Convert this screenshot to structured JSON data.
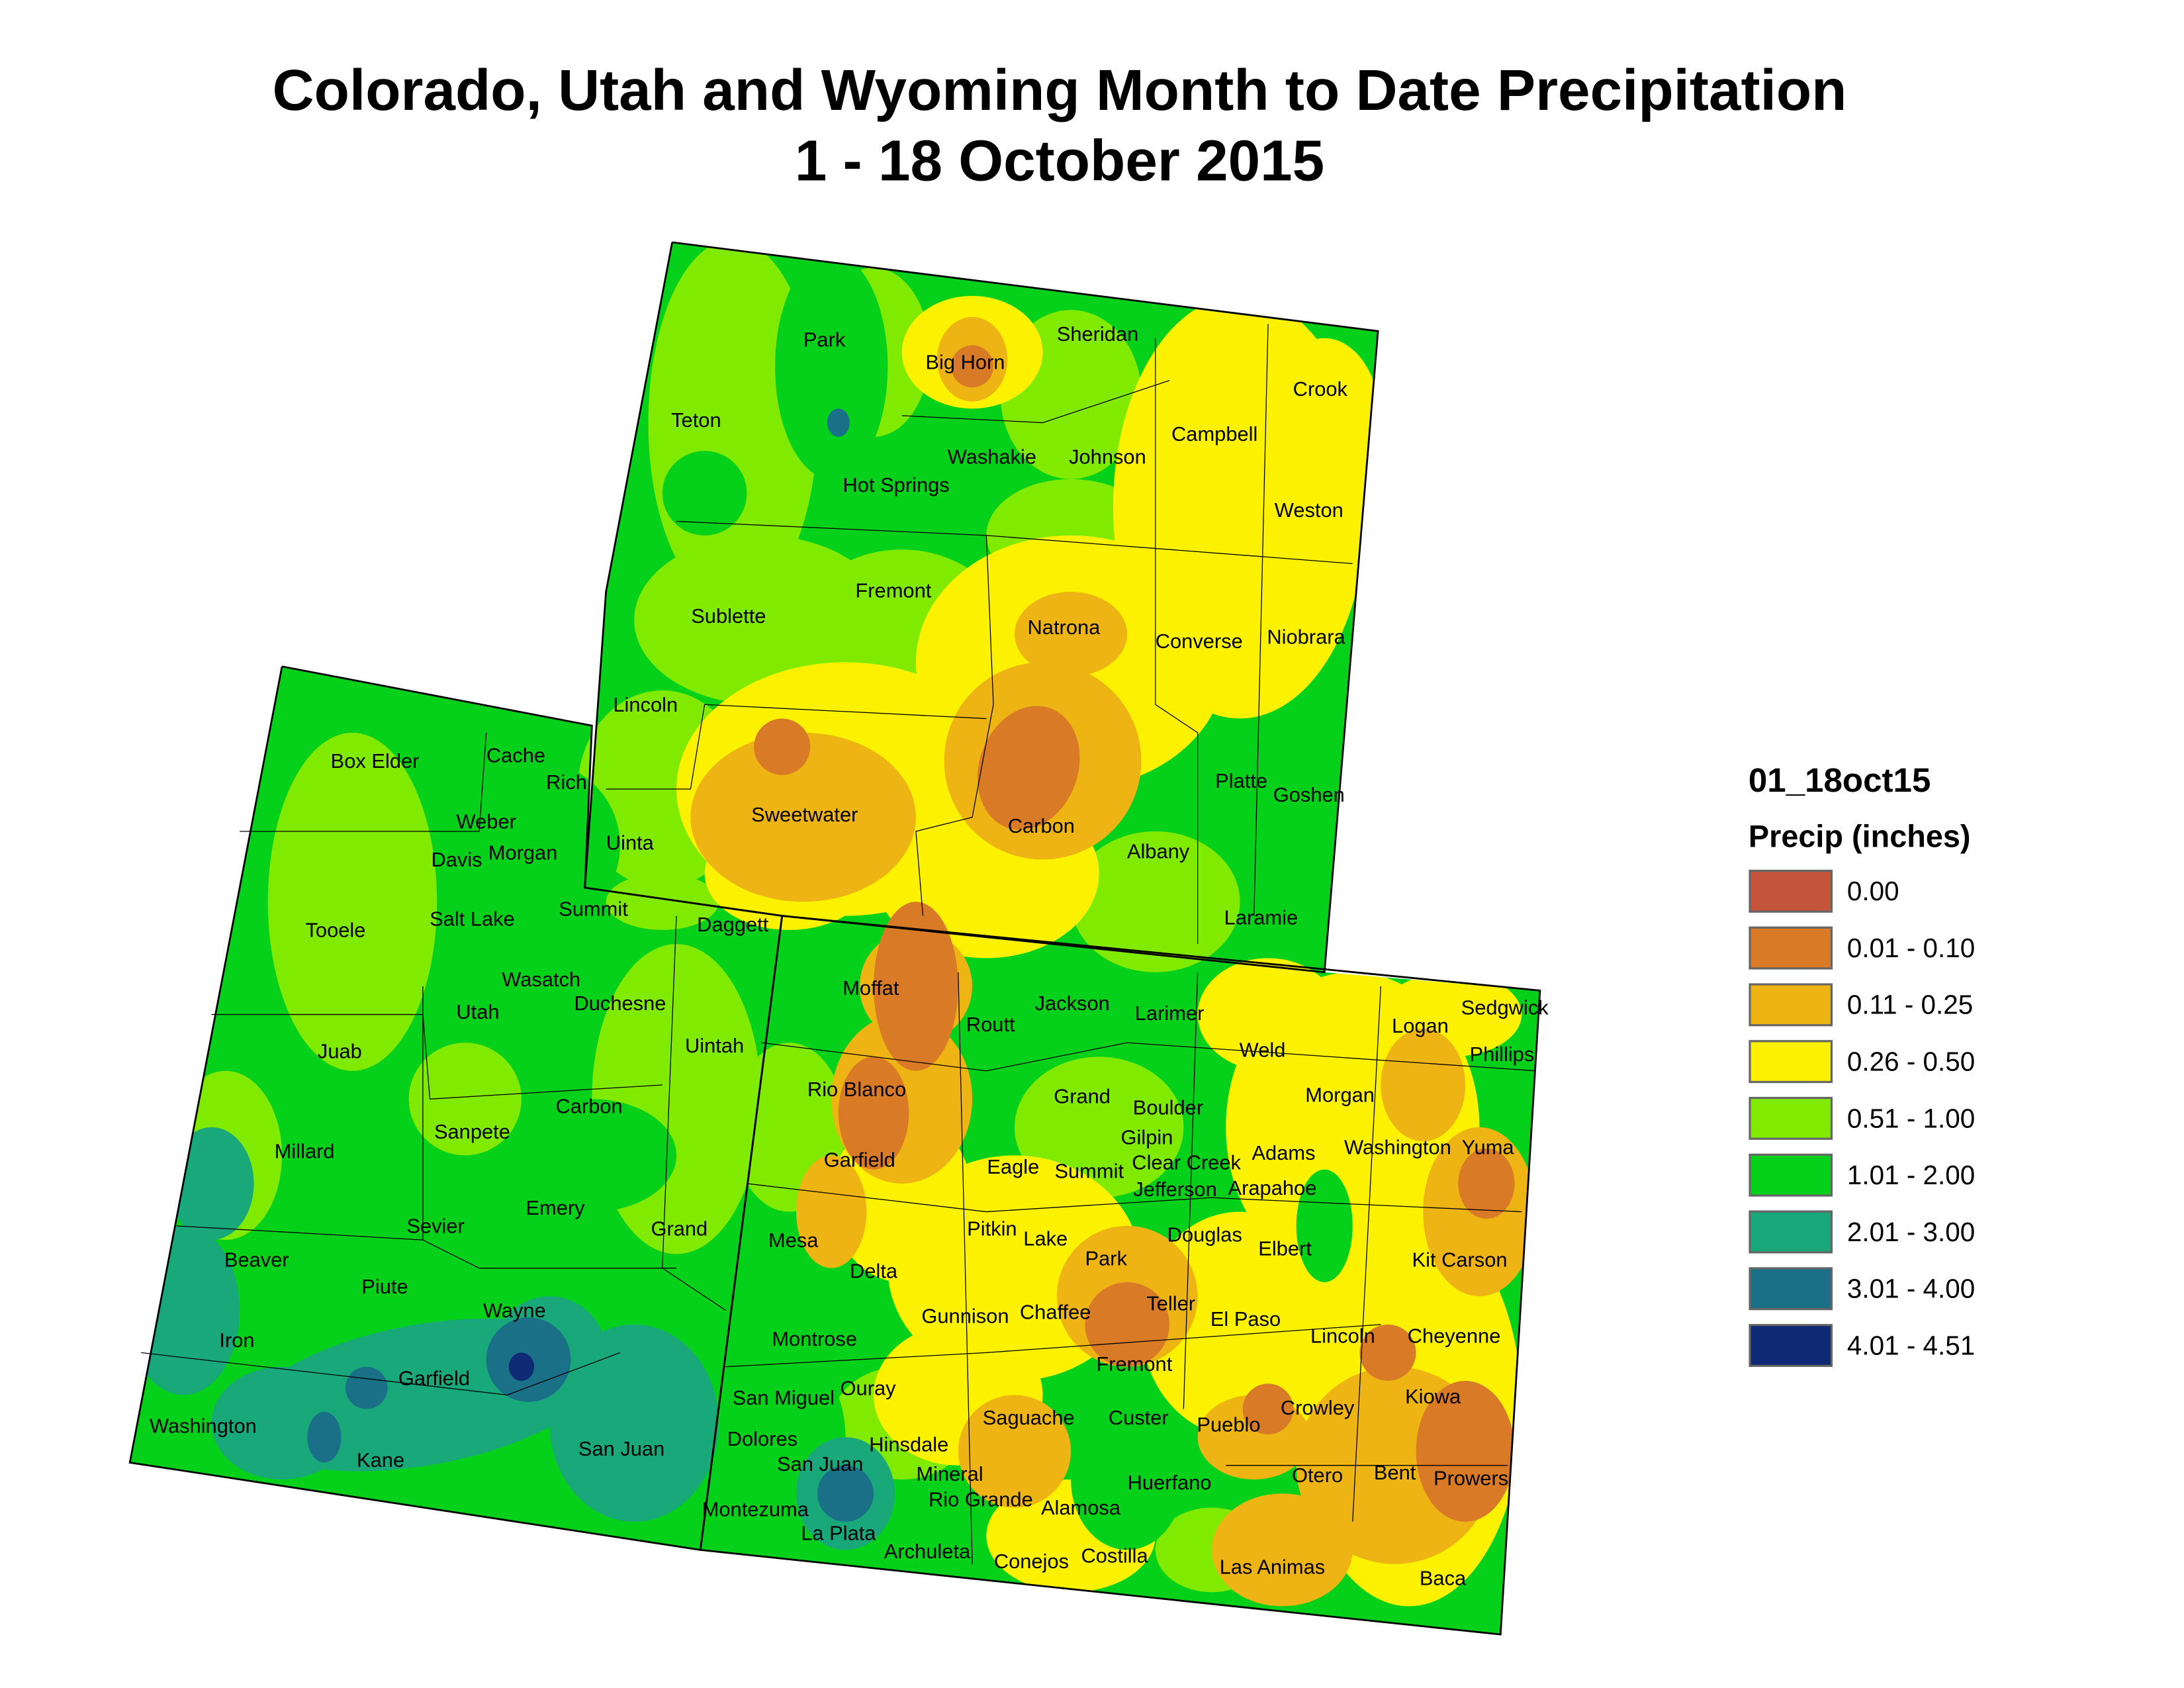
{
  "title": {
    "line1": "Colorado, Utah and Wyoming Month to Date Precipitation",
    "line2": "1 - 18 October 2015"
  },
  "legend": {
    "title": "01_18oct15",
    "subtitle": "Precip (inches)",
    "classes": [
      {
        "label": "0.00",
        "color": "#C4553B"
      },
      {
        "label": "0.01 - 0.10",
        "color": "#D97A26"
      },
      {
        "label": "0.11 - 0.25",
        "color": "#EDB413"
      },
      {
        "label": "0.26 - 0.50",
        "color": "#FCF200"
      },
      {
        "label": "0.51 - 1.00",
        "color": "#80EA00"
      },
      {
        "label": "1.01 - 2.00",
        "color": "#06D11A"
      },
      {
        "label": "2.01 - 3.00",
        "color": "#19A87A"
      },
      {
        "label": "3.01 - 4.00",
        "color": "#1A7087"
      },
      {
        "label": "4.01 - 4.51",
        "color": "#0E2A75"
      }
    ]
  },
  "states": [
    "Wyoming",
    "Utah",
    "Colorado"
  ],
  "counties": {
    "wyoming": [
      "Park",
      "Big Horn",
      "Sheridan",
      "Crook",
      "Teton",
      "Washakie",
      "Johnson",
      "Campbell",
      "Hot Springs",
      "Weston",
      "Fremont",
      "Sublette",
      "Natrona",
      "Converse",
      "Niobrara",
      "Lincoln",
      "Sweetwater",
      "Carbon",
      "Platte",
      "Goshen",
      "Uinta",
      "Albany",
      "Laramie"
    ],
    "utah": [
      "Box Elder",
      "Cache",
      "Rich",
      "Weber",
      "Davis",
      "Morgan",
      "Tooele",
      "Salt Lake",
      "Summit",
      "Daggett",
      "Wasatch",
      "Duchesne",
      "Utah",
      "Uintah",
      "Juab",
      "Sanpete",
      "Carbon",
      "Millard",
      "Emery",
      "Sevier",
      "Grand",
      "Beaver",
      "Piute",
      "Wayne",
      "Iron",
      "Garfield",
      "Washington",
      "Kane",
      "San Juan"
    ],
    "colorado": [
      "Moffat",
      "Routt",
      "Jackson",
      "Larimer",
      "Logan",
      "Sedgwick",
      "Phillips",
      "Weld",
      "Rio Blanco",
      "Grand",
      "Boulder",
      "Morgan",
      "Gilpin",
      "Garfield",
      "Eagle",
      "Summit",
      "Clear Creek",
      "Adams",
      "Washington",
      "Yuma",
      "Jefferson",
      "Arapahoe",
      "Mesa",
      "Pitkin",
      "Lake",
      "Douglas",
      "Elbert",
      "Kit Carson",
      "Delta",
      "Park",
      "Teller",
      "Chaffee",
      "Gunnison",
      "El Paso",
      "Lincoln",
      "Cheyenne",
      "Montrose",
      "Fremont",
      "Ouray",
      "San Miguel",
      "Kiowa",
      "Crowley",
      "Saguache",
      "Custer",
      "Pueblo",
      "Dolores",
      "Hinsdale",
      "San Juan",
      "Mineral",
      "Otero",
      "Bent",
      "Prowers",
      "Huerfano",
      "Rio Grande",
      "Alamosa",
      "Montezuma",
      "La Plata",
      "Archuleta",
      "Conejos",
      "Costilla",
      "Las Animas",
      "Baca"
    ]
  }
}
